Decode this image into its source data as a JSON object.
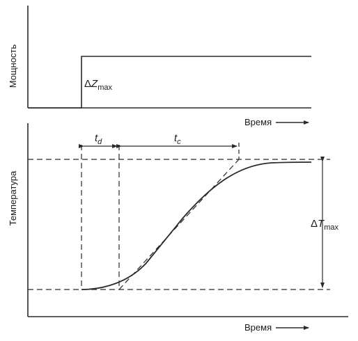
{
  "top_panel": {
    "y_label": "Мощность",
    "x_label": "Время",
    "step_symbol_delta": "Δ",
    "step_symbol_var": "Z",
    "step_symbol_sub": "max"
  },
  "bottom_panel": {
    "y_label": "Температура",
    "x_label": "Время",
    "dead_time_var": "t",
    "dead_time_sub": "d",
    "time_constant_var": "t",
    "time_constant_sub": "c",
    "delta_T_delta": "Δ",
    "delta_T_var": "T",
    "delta_T_sub": "max"
  },
  "colors": {
    "line": "#2a2a2a",
    "background": "#ffffff"
  }
}
